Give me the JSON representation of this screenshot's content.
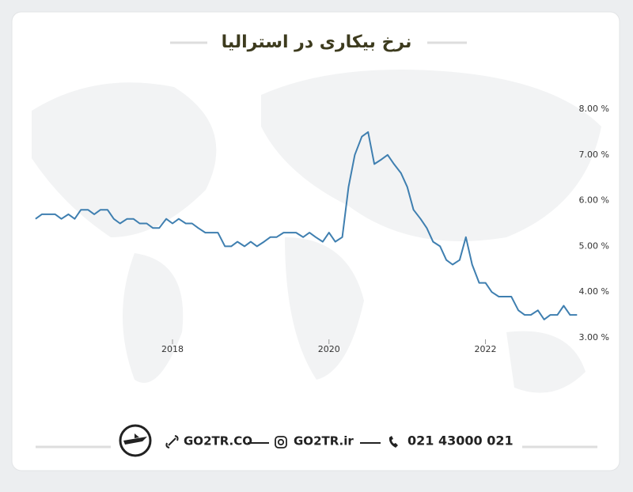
{
  "chart_data": {
    "type": "line",
    "title": "نرخ بیکاری در استرالیا",
    "x": [
      2016.25,
      2016.33,
      2016.42,
      2016.5,
      2016.58,
      2016.67,
      2016.75,
      2016.83,
      2016.92,
      2017.0,
      2017.08,
      2017.17,
      2017.25,
      2017.33,
      2017.42,
      2017.5,
      2017.58,
      2017.67,
      2017.75,
      2017.83,
      2017.92,
      2018.0,
      2018.08,
      2018.17,
      2018.25,
      2018.33,
      2018.42,
      2018.5,
      2018.58,
      2018.67,
      2018.75,
      2018.83,
      2018.92,
      2019.0,
      2019.08,
      2019.17,
      2019.25,
      2019.33,
      2019.42,
      2019.5,
      2019.58,
      2019.67,
      2019.75,
      2019.83,
      2019.92,
      2020.0,
      2020.08,
      2020.17,
      2020.25,
      2020.33,
      2020.42,
      2020.5,
      2020.58,
      2020.67,
      2020.75,
      2020.83,
      2020.92,
      2021.0,
      2021.08,
      2021.17,
      2021.25,
      2021.33,
      2021.42,
      2021.5,
      2021.58,
      2021.67,
      2021.75,
      2021.83,
      2021.92,
      2022.0,
      2022.08,
      2022.17,
      2022.25,
      2022.33,
      2022.42,
      2022.5,
      2022.58,
      2022.67,
      2022.75,
      2022.83,
      2022.92,
      2023.0,
      2023.08,
      2023.17
    ],
    "series": [
      {
        "color": "#3f7fb0",
        "values": [
          5.6,
          5.7,
          5.7,
          5.7,
          5.6,
          5.7,
          5.6,
          5.8,
          5.8,
          5.7,
          5.8,
          5.8,
          5.6,
          5.5,
          5.6,
          5.6,
          5.5,
          5.5,
          5.4,
          5.4,
          5.6,
          5.5,
          5.6,
          5.5,
          5.5,
          5.4,
          5.3,
          5.3,
          5.3,
          5.0,
          5.0,
          5.1,
          5.0,
          5.1,
          5.0,
          5.1,
          5.2,
          5.2,
          5.3,
          5.3,
          5.3,
          5.2,
          5.3,
          5.2,
          5.1,
          5.3,
          5.1,
          5.2,
          6.3,
          7.0,
          7.4,
          7.5,
          6.8,
          6.9,
          7.0,
          6.8,
          6.6,
          6.3,
          5.8,
          5.6,
          5.4,
          5.1,
          5.0,
          4.7,
          4.6,
          4.7,
          5.2,
          4.6,
          4.2,
          4.2,
          4.0,
          3.9,
          3.9,
          3.9,
          3.6,
          3.5,
          3.5,
          3.6,
          3.4,
          3.5,
          3.5,
          3.7,
          3.5,
          3.5
        ]
      }
    ],
    "xlim": [
      2016.2,
      2023.4
    ],
    "xticks": [
      2018,
      2020,
      2022
    ],
    "ylim": [
      3,
      8
    ],
    "yticks": [
      {
        "value": 3,
        "label": "3.00 %"
      },
      {
        "value": 4,
        "label": "4.00 %"
      },
      {
        "value": 5,
        "label": "5.00 %"
      },
      {
        "value": 6,
        "label": "6.00 %"
      },
      {
        "value": 7,
        "label": "7.00 %"
      },
      {
        "value": 8,
        "label": "8.00 %"
      }
    ]
  },
  "footer": {
    "website": "GO2TR.CO",
    "instagram": "GO2TR.ir",
    "phone": "021 43000 021"
  }
}
